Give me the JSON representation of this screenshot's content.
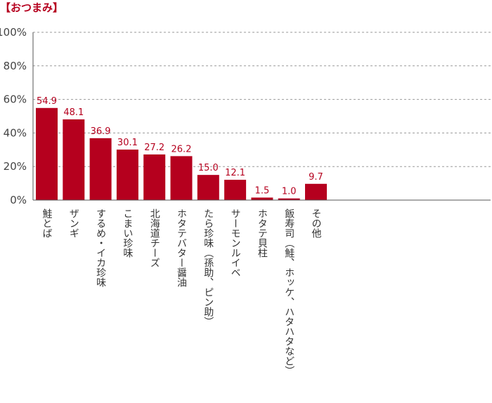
{
  "chart_data": {
    "type": "bar",
    "title": "【おつまみ】",
    "categories": [
      "鮭とば",
      "ザンギ",
      "するめ・イカ珍味",
      "こまい珍味",
      "北海道チーズ",
      "ホタテバター醤油",
      "たら珍味（孫助、ピン助）",
      "サーモンルイベ",
      "ホタテ貝柱",
      "飯寿司（鮭、ホッケ、ハタハタなど）",
      "その他"
    ],
    "values": [
      54.9,
      48.1,
      36.9,
      30.1,
      27.2,
      26.2,
      15.0,
      12.1,
      1.5,
      1.0,
      9.7
    ],
    "value_labels": [
      "54.9",
      "48.1",
      "36.9",
      "30.1",
      "27.2",
      "26.2",
      "15.0",
      "12.1",
      "1.5",
      "1.0",
      "9.7"
    ],
    "yticks": [
      "0%",
      "20%",
      "40%",
      "60%",
      "80%",
      "100%"
    ],
    "ylim": [
      0,
      100
    ],
    "grid": true,
    "bar_color": "#b5001e",
    "label_color": "#b5001e"
  }
}
